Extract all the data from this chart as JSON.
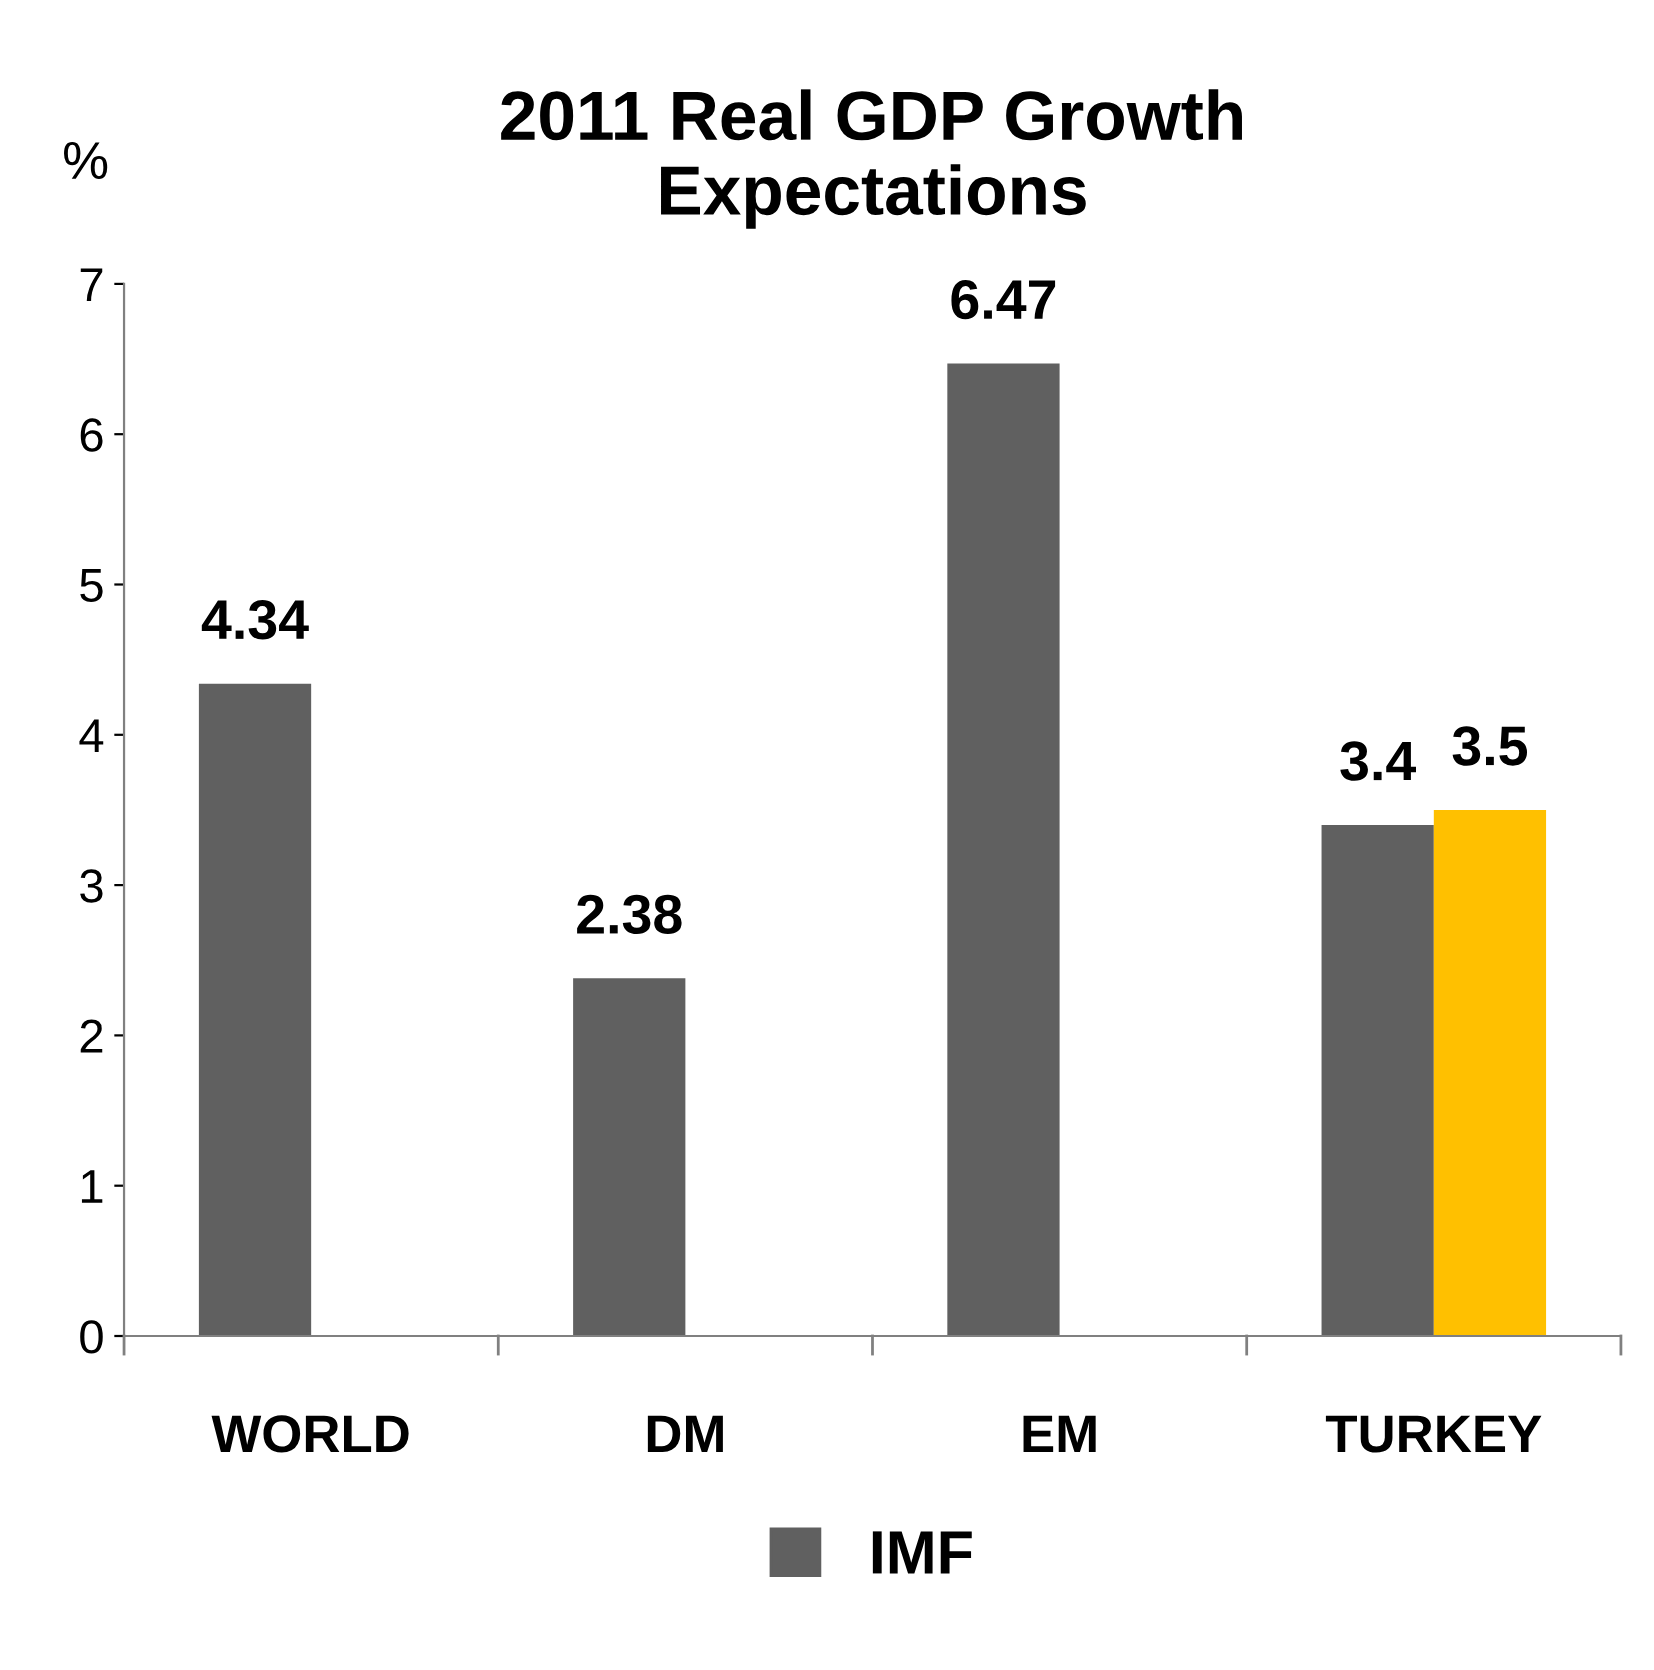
{
  "chart_data": {
    "type": "bar",
    "title": "2011 Real GDP Growth\nExpectations",
    "ylabel": "%",
    "categories": [
      "WORLD",
      "DM",
      "EM",
      "TURKEY"
    ],
    "series": [
      {
        "name": "IMF",
        "color": "#606060",
        "values": [
          4.34,
          2.38,
          6.47,
          3.4
        ]
      },
      {
        "color": "#ffc000",
        "values": [
          null,
          null,
          null,
          3.5
        ]
      }
    ],
    "ylim": [
      0,
      7
    ],
    "yticks": [
      0,
      1,
      2,
      3,
      4,
      5,
      6,
      7
    ],
    "grid": false,
    "legend": "bottom",
    "data_labels": true
  }
}
